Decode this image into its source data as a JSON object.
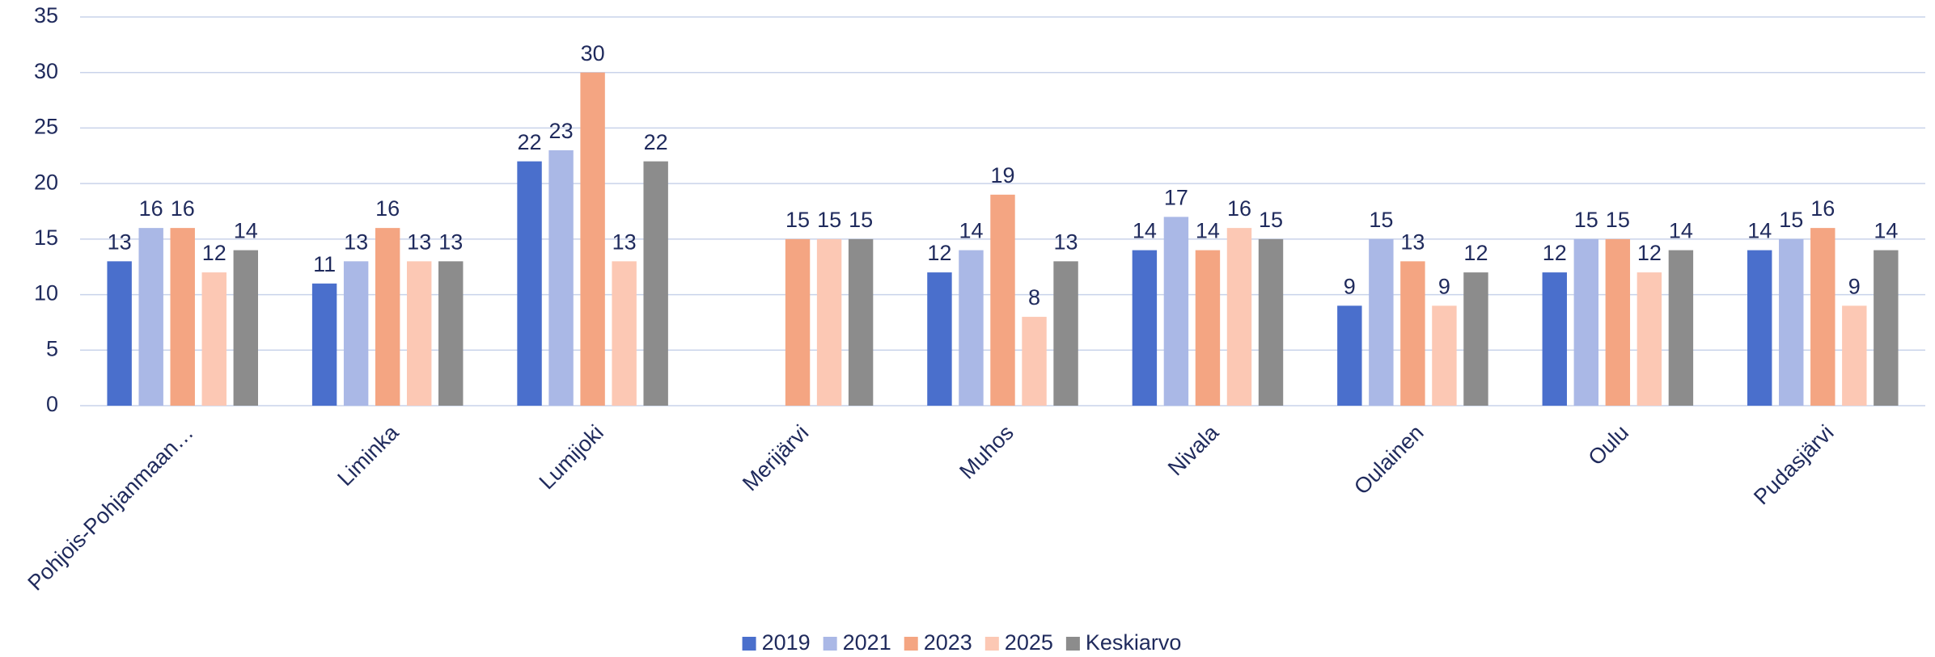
{
  "chart_data": {
    "type": "bar",
    "categories": [
      "Pohjois-Pohjanmaan…",
      "Liminka",
      "Lumijoki",
      "Merijärvi",
      "Muhos",
      "Nivala",
      "Oulainen",
      "Oulu",
      "Pudasjärvi"
    ],
    "series": [
      {
        "name": "2019",
        "color": "#4a6fcc",
        "values": [
          13,
          11,
          22,
          null,
          12,
          14,
          9,
          12,
          14
        ]
      },
      {
        "name": "2021",
        "color": "#aab8e6",
        "values": [
          16,
          13,
          23,
          null,
          14,
          17,
          15,
          15,
          15
        ]
      },
      {
        "name": "2023",
        "color": "#f4a582",
        "values": [
          16,
          16,
          30,
          15,
          19,
          14,
          13,
          15,
          16
        ]
      },
      {
        "name": "2025",
        "color": "#fcc8b4",
        "values": [
          12,
          13,
          13,
          15,
          8,
          16,
          9,
          12,
          9
        ]
      },
      {
        "name": "Keskiarvo",
        "color": "#8c8c8c",
        "values": [
          14,
          13,
          22,
          15,
          13,
          15,
          12,
          14,
          14
        ]
      }
    ],
    "ylim": [
      0,
      35
    ],
    "yticks": [
      0,
      5,
      10,
      15,
      20,
      25,
      30,
      35
    ],
    "grid": true,
    "legend": "bottom"
  }
}
